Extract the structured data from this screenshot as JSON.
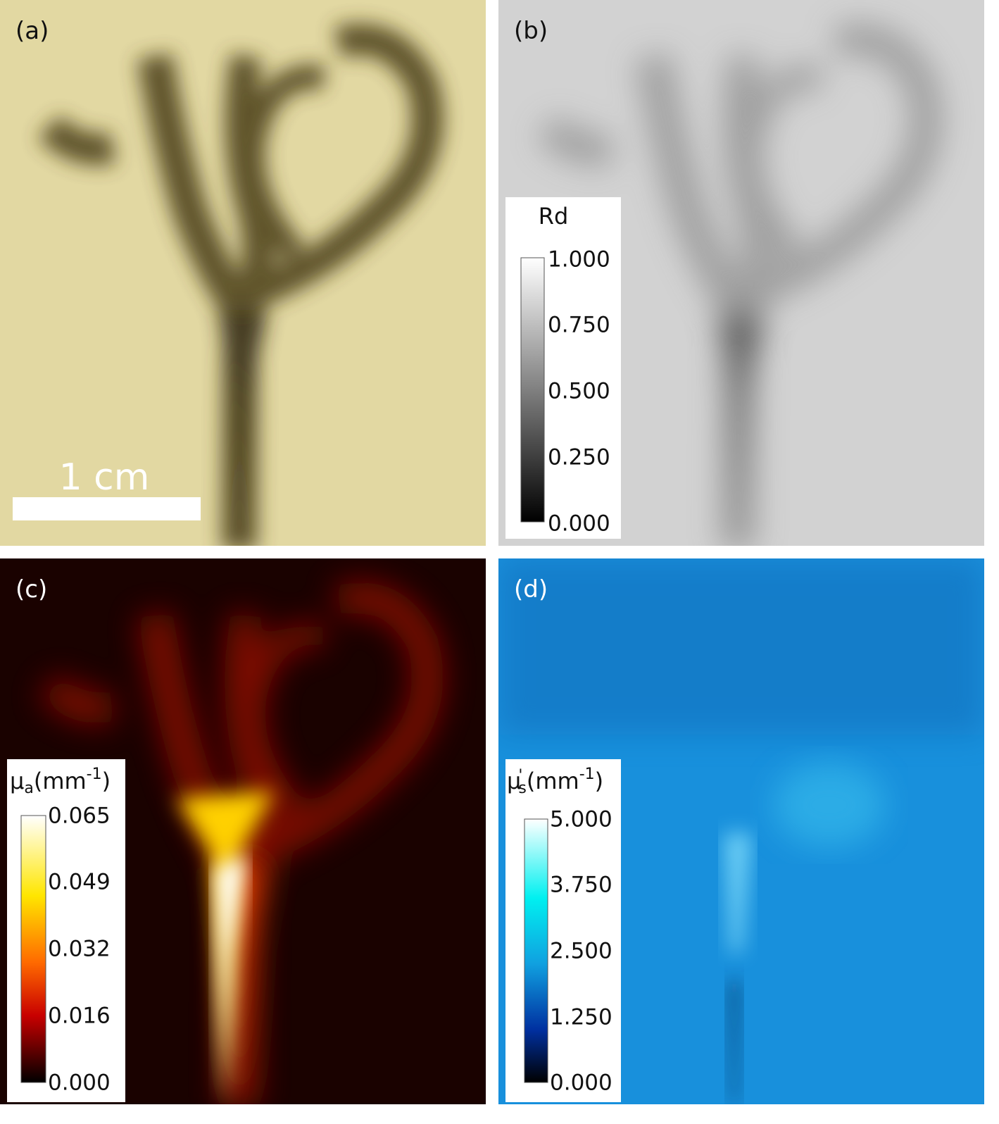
{
  "panels": [
    {
      "label": "(a)",
      "scale_bar": "1 cm"
    },
    {
      "label": "(b)",
      "colorbar": {
        "title": "Rd",
        "ticks": [
          "1.000",
          "0.750",
          "0.500",
          "0.250",
          "0.000"
        ]
      }
    },
    {
      "label": "(c)",
      "colorbar": {
        "title": {
          "symbol": "μ",
          "subscript": "a",
          "unit": "(mm",
          "superscript": "-1",
          "close": ")"
        },
        "ticks": [
          "0.065",
          "0.049",
          "0.032",
          "0.016",
          "0.000"
        ]
      }
    },
    {
      "label": "(d)",
      "colorbar": {
        "title": {
          "symbol": "μ",
          "superscript": "'",
          "subscript": "s",
          "unit": "(mm",
          "superscript2": "-1",
          "close": ")"
        },
        "ticks": [
          "5.000",
          "3.750",
          "2.500",
          "1.250",
          "0.000"
        ]
      }
    }
  ]
}
